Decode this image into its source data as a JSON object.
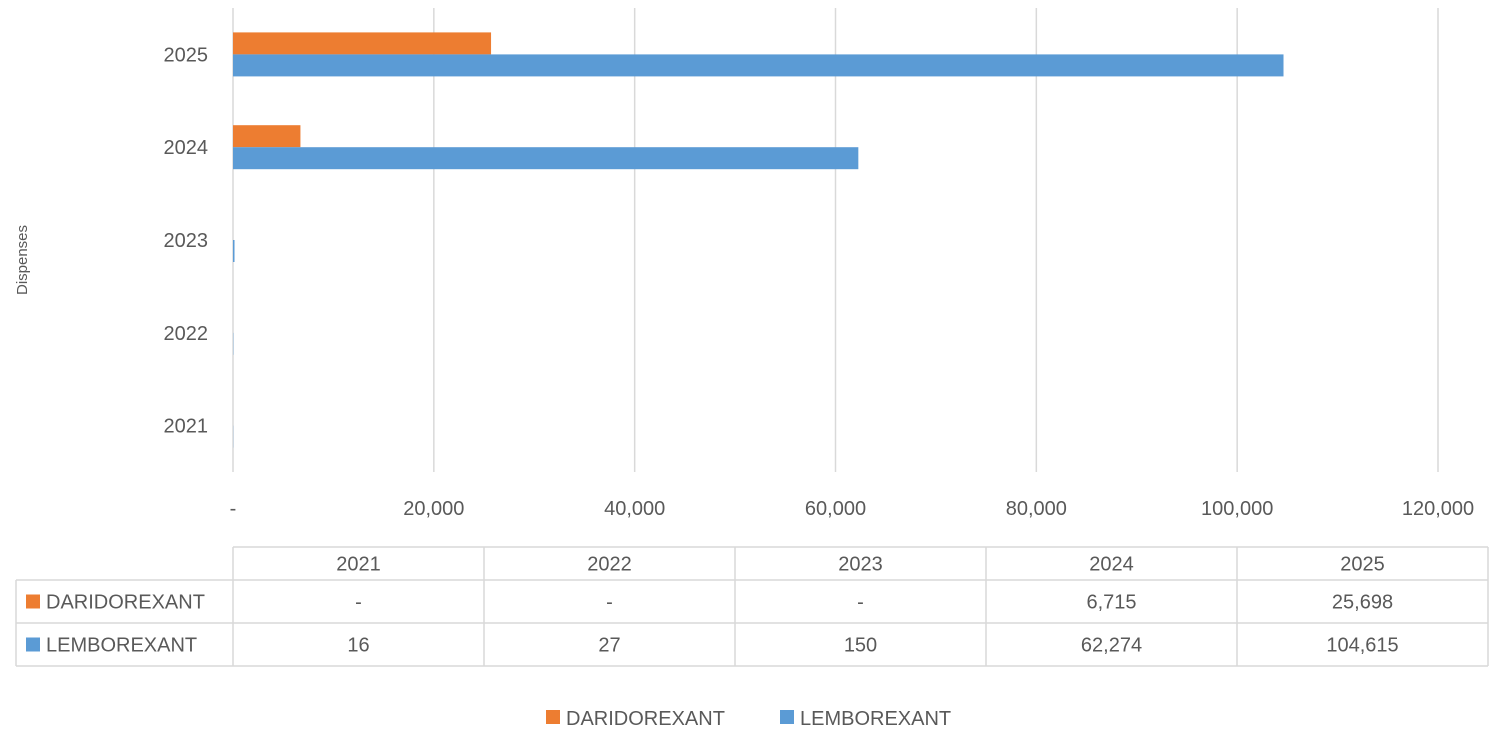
{
  "chart_data": {
    "type": "bar",
    "orientation": "horizontal",
    "categories": [
      "2021",
      "2022",
      "2023",
      "2024",
      "2025"
    ],
    "series": [
      {
        "name": "DARIDOREXANT",
        "values": [
          null,
          null,
          null,
          6715,
          25698
        ],
        "display": [
          "-",
          "-",
          "-",
          "6,715",
          "25,698"
        ],
        "color": "#ED7D31"
      },
      {
        "name": "LEMBOREXANT",
        "values": [
          16,
          27,
          150,
          62274,
          104615
        ],
        "display": [
          "16",
          "27",
          "150",
          "62,274",
          "104,615"
        ],
        "color": "#5B9BD5"
      }
    ],
    "ylabel": "Dispenses",
    "xlabel": "",
    "xlim": [
      0,
      120000
    ],
    "x_ticks": [
      {
        "value": 0,
        "label": "-"
      },
      {
        "value": 20000,
        "label": "20,000"
      },
      {
        "value": 40000,
        "label": "40,000"
      },
      {
        "value": 60000,
        "label": "60,000"
      },
      {
        "value": 80000,
        "label": "80,000"
      },
      {
        "value": 100000,
        "label": "100,000"
      },
      {
        "value": 120000,
        "label": "120,000"
      }
    ],
    "grid": true,
    "legend": "bottom",
    "data_table": true
  }
}
